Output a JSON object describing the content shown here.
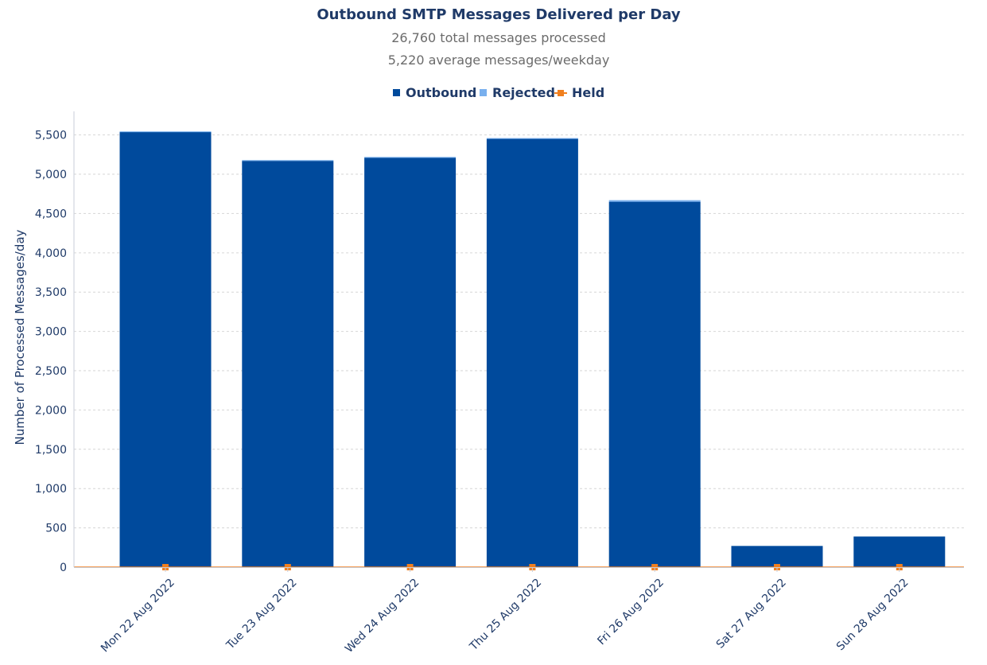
{
  "chart_data": {
    "type": "bar",
    "stacked": true,
    "title": "Outbound SMTP Messages Delivered per Day",
    "subtitles": [
      "26,760 total messages processed",
      "5,220 average messages/weekday"
    ],
    "xlabel": "",
    "ylabel": "Number of Processed Messages/day",
    "ylim": [
      0,
      5800
    ],
    "yticks": [
      0,
      500,
      1000,
      1500,
      2000,
      2500,
      3000,
      3500,
      4000,
      4500,
      5000,
      5500
    ],
    "ytick_labels": [
      "0",
      "500",
      "1,000",
      "1,500",
      "2,000",
      "2,500",
      "3,000",
      "3,500",
      "4,000",
      "4,500",
      "5,000",
      "5,500"
    ],
    "grid": true,
    "legend": "top-center",
    "categories": [
      "Mon 22 Aug 2022",
      "Tue 23 Aug 2022",
      "Wed 24 Aug 2022",
      "Thu 25 Aug 2022",
      "Fri 26 Aug 2022",
      "Sat 27 Aug 2022",
      "Sun 28 Aug 2022"
    ],
    "series": [
      {
        "name": "Outbound",
        "kind": "bar",
        "color": "#004a9c",
        "values": [
          5540,
          5170,
          5210,
          5450,
          4650,
          270,
          390
        ]
      },
      {
        "name": "Rejected",
        "kind": "bar",
        "color": "#79b0ee",
        "values": [
          5,
          10,
          10,
          10,
          20,
          0,
          0
        ]
      },
      {
        "name": "Held",
        "kind": "line",
        "color": "#f07f1e",
        "values": [
          0,
          0,
          0,
          0,
          0,
          0,
          0
        ]
      }
    ]
  }
}
